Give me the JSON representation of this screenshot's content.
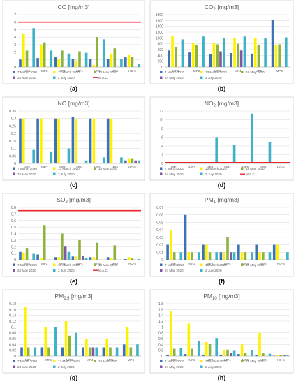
{
  "colors": {
    "s7mar": "#3E72B5",
    "s13mar": "#FFF200",
    "s18may": "#8DB23E",
    "s24may": "#7E58A4",
    "s2jul": "#3EB2C6",
    "mac": "#E8242A",
    "grid": "#D9D9D9",
    "axis": "#BFBFBF",
    "text": "#595959",
    "panel_border": "#D0D0D0"
  },
  "chart_data": [
    {
      "type": "bar",
      "panel_label": "(a)",
      "title": "CO [mg/m3]",
      "categories": [
        "MP1",
        "MP2",
        "MP3",
        "MP4",
        "MP5",
        "MP6",
        "HD-5"
      ],
      "ylim": [
        0,
        7
      ],
      "yticks": [
        "0",
        "1",
        "2",
        "3",
        "4",
        "5",
        "6",
        "7"
      ],
      "mac_line": 6,
      "legend": [
        "7 March 2020",
        "13 March 2020",
        "18 May 2020",
        "24 May 2020",
        "2 July 2020",
        "M.A.C."
      ],
      "series": [
        {
          "name": "7 March 2020",
          "values": [
            1.0,
            1.2,
            1.3,
            1.1,
            1.1,
            1.1,
            1.3
          ]
        },
        {
          "name": "13 March 2020",
          "values": [
            4.5,
            3.0,
            1.1,
            0.9,
            0.3,
            1.8,
            1.6
          ]
        },
        {
          "name": "18 May 2020",
          "values": [
            2.2,
            3.3,
            2.2,
            2.1,
            4.0,
            2.5,
            1.4
          ]
        },
        {
          "name": "24 May 2020",
          "values": [
            0,
            0,
            0,
            0,
            0,
            0,
            0
          ]
        },
        {
          "name": "2 July 2020",
          "values": [
            5.2,
            2.2,
            1.8,
            1.9,
            3.7,
            1.1,
            0.4
          ]
        }
      ]
    },
    {
      "type": "bar",
      "panel_label": "(b)",
      "title": "CO2 [mg/m3]",
      "categories": [
        "MP1",
        "MP2",
        "MP3",
        "MP4",
        "MP5",
        "MP6"
      ],
      "ylim": [
        0,
        1800
      ],
      "yticks": [
        "0",
        "200",
        "400",
        "600",
        "800",
        "1000",
        "1200",
        "1400",
        "1600",
        "1800"
      ],
      "legend": [
        "7 March 2020",
        "13 March 2020",
        "18 May 2020",
        "24 May 2020",
        "2 July 2020"
      ],
      "series": [
        {
          "name": "7 March 2020",
          "values": [
            570,
            500,
            450,
            480,
            460,
            1620
          ]
        },
        {
          "name": "13 March 2020",
          "values": [
            1080,
            830,
            820,
            1000,
            1000,
            760
          ]
        },
        {
          "name": "18 May 2020",
          "values": [
            680,
            760,
            780,
            800,
            760,
            780
          ]
        },
        {
          "name": "24 May 2020",
          "values": [
            0,
            0,
            540,
            570,
            0,
            0
          ]
        },
        {
          "name": "2 July 2020",
          "values": [
            950,
            1050,
            1000,
            1050,
            980,
            1020
          ]
        }
      ]
    },
    {
      "type": "bar",
      "panel_label": "(c)",
      "title": "NO [mg/m3]",
      "categories": [
        "MP1",
        "MP2",
        "MP3",
        "MP4",
        "MP5",
        "MP6",
        "HD-5"
      ],
      "ylim": [
        0,
        0.35
      ],
      "yticks": [
        "0",
        "0.05",
        "0.1",
        "0.15",
        "0.2",
        "0.25",
        "0.3",
        "0.35"
      ],
      "legend": [
        "7 March 2020",
        "13 March 2020",
        "18 May 2020",
        "24 May 2020",
        "2 July 2020"
      ],
      "series": [
        {
          "name": "7 March 2020",
          "values": [
            0.3,
            0.3,
            0.3,
            0.31,
            0.3,
            0.3,
            0.02
          ]
        },
        {
          "name": "13 March 2020",
          "values": [
            0.3,
            0.3,
            0.3,
            0.3,
            0.3,
            0.3,
            0.03
          ]
        },
        {
          "name": "18 May 2020",
          "values": [
            0,
            0,
            0,
            0,
            0,
            0,
            0.03
          ]
        },
        {
          "name": "24 May 2020",
          "values": [
            0,
            0,
            0,
            0,
            0,
            0,
            0.02
          ]
        },
        {
          "name": "2 July 2020",
          "values": [
            0.09,
            0.08,
            0.1,
            0.02,
            0.04,
            0.04,
            0.02
          ]
        }
      ]
    },
    {
      "type": "bar",
      "panel_label": "(d)",
      "title": "NO2 [mg/m3]",
      "categories": [
        "MP1",
        "MP2",
        "MP3",
        "MP4",
        "MP5",
        "MP6",
        "HD-5"
      ],
      "ylim": [
        0,
        12
      ],
      "yticks": [
        "0",
        "2",
        "4",
        "6",
        "8",
        "10",
        "12"
      ],
      "mac_line": 0.2,
      "legend": [
        "7 March 2020",
        "13 March 2020",
        "18 May 2020",
        "24 May 2020",
        "2 July 2020",
        "M.A.C."
      ],
      "series": [
        {
          "name": "7 March 2020",
          "values": [
            0,
            0,
            0,
            0,
            0,
            0,
            0
          ]
        },
        {
          "name": "13 March 2020",
          "values": [
            0,
            0,
            0,
            0,
            0,
            0,
            0
          ]
        },
        {
          "name": "18 May 2020",
          "values": [
            0,
            0,
            0,
            0,
            0,
            0,
            0
          ]
        },
        {
          "name": "24 May 2020",
          "values": [
            0,
            0,
            0,
            0,
            0,
            0,
            0
          ]
        },
        {
          "name": "2 July 2020",
          "values": [
            0,
            0,
            6.0,
            4.2,
            11.4,
            4.8,
            0
          ]
        }
      ]
    },
    {
      "type": "bar",
      "panel_label": "(e)",
      "title": "SO2 [mg/m3]",
      "categories": [
        "MP1",
        "MP2",
        "MP3",
        "MP4",
        "MP5",
        "MP6",
        "HD-5"
      ],
      "ylim": [
        0,
        0.8
      ],
      "yticks": [
        "0",
        "0.1",
        "0.2",
        "0.3",
        "0.4",
        "0.5",
        "0.6",
        "0.7",
        "0.8"
      ],
      "mac_line": 0.75,
      "legend": [
        "7 March 2020",
        "13 March 2020",
        "18 May 2020",
        "24 May 2020",
        "2 July 2020",
        "M.A.C."
      ],
      "series": [
        {
          "name": "7 March 2020",
          "values": [
            0.12,
            0.08,
            0.04,
            0.05,
            0.04,
            0.04,
            0.01
          ]
        },
        {
          "name": "13 March 2020",
          "values": [
            0.11,
            0.02,
            0.04,
            0.05,
            0.04,
            0.02,
            0.04
          ]
        },
        {
          "name": "18 May 2020",
          "values": [
            0.18,
            0.53,
            0.4,
            0.3,
            0.26,
            0.22,
            0.02
          ]
        },
        {
          "name": "24 May 2020",
          "values": [
            0,
            0,
            0.2,
            0.06,
            0,
            0,
            0
          ]
        },
        {
          "name": "2 July 2020",
          "values": [
            0.09,
            0,
            0.12,
            0.03,
            0,
            0,
            0.01
          ]
        }
      ]
    },
    {
      "type": "bar",
      "panel_label": "(f)",
      "title": "PM1 [mg/m3]",
      "categories": [
        "MP1",
        "MP2",
        "MP3",
        "MP4",
        "MP5",
        "MP6",
        "HD-5"
      ],
      "ylim": [
        0,
        0.07
      ],
      "yticks": [
        "0",
        "0.01",
        "0.02",
        "0.03",
        "0.04",
        "0.05",
        "0.06",
        "0.07"
      ],
      "legend": [
        "7 March 2020",
        "13 March 2020",
        "18 May 2020",
        "24 May 2020",
        "2 July 2020"
      ],
      "series": [
        {
          "name": "7 March 2020",
          "values": [
            0.02,
            0.06,
            0.02,
            0.01,
            0.02,
            0.02,
            0.02
          ]
        },
        {
          "name": "13 March 2020",
          "values": [
            0.04,
            0.01,
            0.02,
            0.01,
            0.01,
            0.01,
            0.02
          ]
        },
        {
          "name": "18 May 2020",
          "values": [
            0.01,
            0.01,
            0.01,
            0.03,
            0.01,
            0.01,
            0
          ]
        },
        {
          "name": "24 May 2020",
          "values": [
            0,
            0,
            0,
            0.01,
            0,
            0,
            0
          ]
        },
        {
          "name": "2 July 2020",
          "values": [
            0.01,
            0.01,
            0.01,
            0.01,
            0.01,
            0.01,
            0.01
          ]
        }
      ]
    },
    {
      "type": "bar",
      "panel_label": "(g)",
      "title": "PM2.5 [mg/m3]",
      "categories": [
        "MP1",
        "MP2",
        "MP3",
        "MP4",
        "MP5",
        "MP6"
      ],
      "ylim": [
        0,
        0.18
      ],
      "yticks": [
        "0",
        "0.02",
        "0.04",
        "0.06",
        "0.08",
        "0.1",
        "0.12",
        "0.14",
        "0.16",
        "0.18"
      ],
      "legend": [
        "7 March 2020",
        "13 March 2020",
        "18 May 2020",
        "24 May 2020",
        "2 July 2020"
      ],
      "series": [
        {
          "name": "7 March 2020",
          "values": [
            0.03,
            0.03,
            0.03,
            0.03,
            0.03,
            0.04
          ]
        },
        {
          "name": "13 March 2020",
          "values": [
            0.17,
            0.1,
            0.12,
            0.06,
            0.06,
            0.1
          ]
        },
        {
          "name": "18 May 2020",
          "values": [
            0.03,
            0.03,
            0.07,
            0.03,
            0.03,
            0.03
          ]
        },
        {
          "name": "24 May 2020",
          "values": [
            0,
            0,
            0,
            0.03,
            0,
            0
          ]
        },
        {
          "name": "2 July 2020",
          "values": [
            0.03,
            0.1,
            0.08,
            0.03,
            0.03,
            0.04
          ]
        }
      ]
    },
    {
      "type": "bar",
      "panel_label": "(h)",
      "title": "PM10 [mg/m3]",
      "categories": [
        "MP1",
        "MP2",
        "MP3",
        "MP4",
        "MP5",
        "MP6",
        "HD-5"
      ],
      "ylim": [
        0,
        1.8
      ],
      "yticks": [
        "0",
        "0.2",
        "0.4",
        "0.6",
        "0.8",
        "1",
        "1.2",
        "1.4",
        "1.6",
        "1.8"
      ],
      "legend": [
        "7 March 2020",
        "13 March 2020",
        "18 May 2020",
        "24 May 2020",
        "2 July 2020"
      ],
      "series": [
        {
          "name": "7 March 2020",
          "values": [
            0.05,
            0.07,
            0.05,
            0.05,
            0.07,
            0.03,
            0.01
          ]
        },
        {
          "name": "13 March 2020",
          "values": [
            1.55,
            1.12,
            0.48,
            0.2,
            0.4,
            0.8,
            0.03
          ]
        },
        {
          "name": "18 May 2020",
          "values": [
            0.25,
            0.25,
            0.42,
            0.22,
            0.12,
            0.12,
            0.03
          ]
        },
        {
          "name": "24 May 2020",
          "values": [
            0,
            0,
            0,
            0.12,
            0,
            0,
            0.02
          ]
        },
        {
          "name": "2 July 2020",
          "values": [
            0.27,
            0.53,
            0.62,
            0.18,
            0.2,
            0.08,
            0.02
          ]
        }
      ]
    }
  ]
}
